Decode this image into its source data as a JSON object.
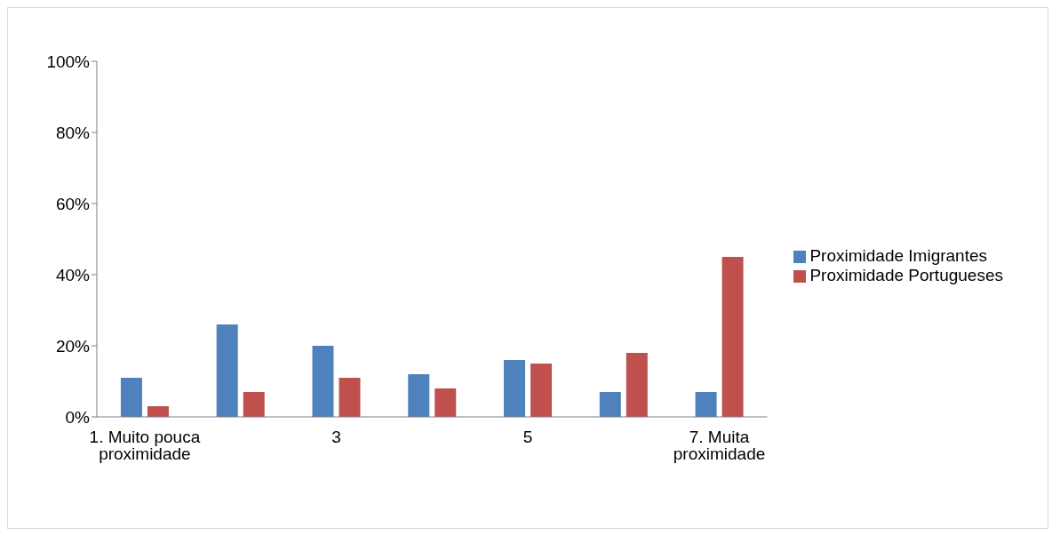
{
  "chart_data": {
    "type": "bar",
    "categories": [
      "1. Muito pouca proximidade",
      null,
      "3",
      null,
      "5",
      null,
      "7. Muita proximidade"
    ],
    "series": [
      {
        "name": "Proximidade Imigrantes",
        "color": "#4f81bd",
        "values": [
          11,
          26,
          20,
          12,
          16,
          7,
          7
        ]
      },
      {
        "name": "Proximidade Portugueses",
        "color": "#c0504d",
        "values": [
          3,
          7,
          11,
          8,
          15,
          18,
          45
        ]
      }
    ],
    "ylim": [
      0,
      100
    ],
    "yticks": [
      {
        "value": 0,
        "label": "0%"
      },
      {
        "value": 20,
        "label": "20%"
      },
      {
        "value": 40,
        "label": "40%"
      },
      {
        "value": 60,
        "label": "60%"
      },
      {
        "value": 80,
        "label": "80%"
      },
      {
        "value": 100,
        "label": "100%"
      }
    ],
    "grid": false,
    "legend": "right"
  }
}
